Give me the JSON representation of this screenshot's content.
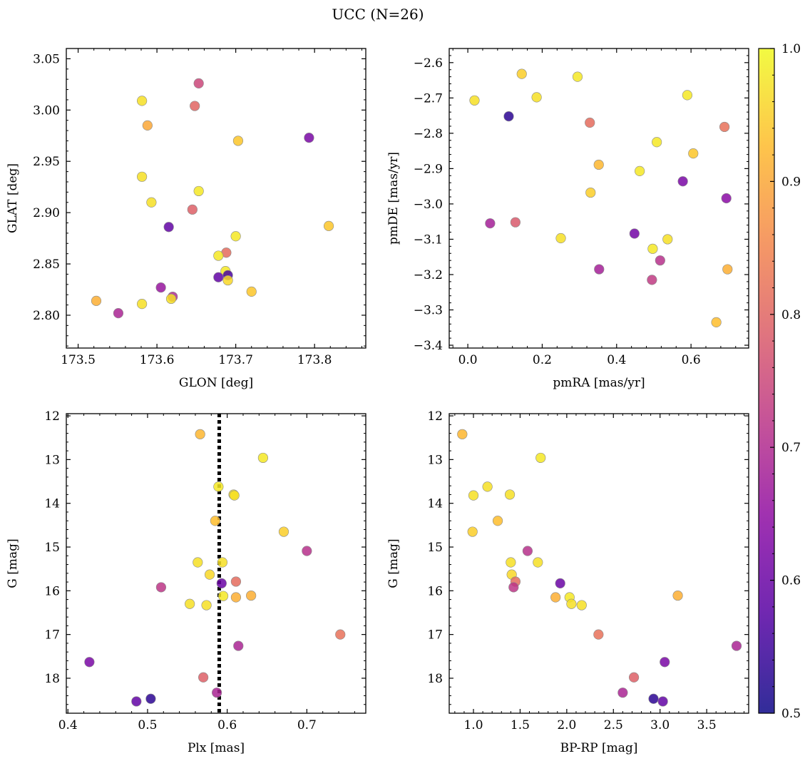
{
  "figure": {
    "title": "UCC (N=26)"
  },
  "colorbar": {
    "min": 0.5,
    "max": 1.0,
    "ticks": [
      0.5,
      0.6,
      0.7,
      0.8,
      0.9,
      1.0
    ],
    "tick_labels": [
      "0.5",
      "0.6",
      "0.7",
      "0.8",
      "0.9",
      "1.0"
    ],
    "colormap": "plasma"
  },
  "chart_data": [
    {
      "id": "glon-glat",
      "type": "scatter",
      "xlabel": "GLON [deg]",
      "ylabel": "GLAT [deg]",
      "xlim": [
        173.485,
        173.865
      ],
      "ylim": [
        2.768,
        3.06
      ],
      "xticks": [
        173.5,
        173.6,
        173.7,
        173.8
      ],
      "xtick_labels": [
        "173.5",
        "173.6",
        "173.7",
        "173.8"
      ],
      "yticks": [
        2.8,
        2.85,
        2.9,
        2.95,
        3.0,
        3.05
      ],
      "ytick_labels": [
        "2.80",
        "2.85",
        "2.90",
        "2.95",
        "3.00",
        "3.05"
      ],
      "invert_y": false,
      "x": [
        173.653,
        173.581,
        173.648,
        173.588,
        173.793,
        173.703,
        173.581,
        173.653,
        173.593,
        173.645,
        173.615,
        173.818,
        173.7,
        173.688,
        173.678,
        173.687,
        173.69,
        173.678,
        173.69,
        173.72,
        173.605,
        173.62,
        173.618,
        173.523,
        173.581,
        173.551
      ],
      "y": [
        3.026,
        3.009,
        3.004,
        2.985,
        2.973,
        2.97,
        2.935,
        2.921,
        2.91,
        2.903,
        2.886,
        2.887,
        2.877,
        2.861,
        2.858,
        2.843,
        2.839,
        2.837,
        2.834,
        2.823,
        2.827,
        2.818,
        2.816,
        2.814,
        2.811,
        2.802
      ],
      "c": [
        0.75,
        0.97,
        0.8,
        0.9,
        0.62,
        0.94,
        0.97,
        0.98,
        0.97,
        0.79,
        0.59,
        0.94,
        0.98,
        0.81,
        0.98,
        0.98,
        0.56,
        0.59,
        0.96,
        0.94,
        0.66,
        0.7,
        0.97,
        0.91,
        0.97,
        0.69
      ]
    },
    {
      "id": "pmra-pmde",
      "type": "scatter",
      "xlabel": "pmRA [mas/yr]",
      "ylabel": "pmDE [mas/yr]",
      "xlim": [
        -0.05,
        0.755
      ],
      "ylim": [
        -3.408,
        -2.56
      ],
      "xticks": [
        0.0,
        0.2,
        0.4,
        0.6
      ],
      "xtick_labels": [
        "0.0",
        "0.2",
        "0.4",
        "0.6"
      ],
      "yticks": [
        -3.4,
        -3.3,
        -3.2,
        -3.1,
        -3.0,
        -2.9,
        -2.8,
        -2.7,
        -2.6
      ],
      "ytick_labels": [
        "−3.4",
        "−3.3",
        "−3.2",
        "−3.1",
        "−3.0",
        "−2.9",
        "−2.8",
        "−2.7",
        "−2.6"
      ],
      "invert_y": false,
      "x": [
        0.145,
        0.295,
        0.59,
        0.018,
        0.185,
        0.11,
        0.328,
        0.69,
        0.508,
        0.606,
        0.352,
        0.462,
        0.578,
        0.33,
        0.695,
        0.06,
        0.128,
        0.448,
        0.25,
        0.537,
        0.497,
        0.517,
        0.698,
        0.353,
        0.495,
        0.668
      ],
      "y": [
        -2.632,
        -2.64,
        -2.692,
        -2.707,
        -2.698,
        -2.752,
        -2.77,
        -2.782,
        -2.825,
        -2.857,
        -2.889,
        -2.907,
        -2.936,
        -2.968,
        -2.984,
        -3.055,
        -3.052,
        -3.084,
        -3.097,
        -3.1,
        -3.127,
        -3.16,
        -3.185,
        -3.185,
        -3.215,
        -3.335
      ],
      "c": [
        0.95,
        0.98,
        0.98,
        0.97,
        0.97,
        0.53,
        0.81,
        0.82,
        0.98,
        0.94,
        0.92,
        0.98,
        0.62,
        0.95,
        0.64,
        0.68,
        0.78,
        0.61,
        0.97,
        0.97,
        0.98,
        0.71,
        0.91,
        0.68,
        0.73,
        0.93
      ]
    },
    {
      "id": "plx-g",
      "type": "scatter",
      "xlabel": "Plx [mas]",
      "ylabel": "G [mag]",
      "xlim": [
        0.398,
        0.774
      ],
      "ylim": [
        11.95,
        18.8
      ],
      "xticks": [
        0.4,
        0.5,
        0.6,
        0.7
      ],
      "xtick_labels": [
        "0.4",
        "0.5",
        "0.6",
        "0.7"
      ],
      "yticks": [
        12,
        13,
        14,
        15,
        16,
        17,
        18
      ],
      "ytick_labels": [
        "12",
        "13",
        "14",
        "15",
        "16",
        "17",
        "18"
      ],
      "invert_y": true,
      "vline": 0.59,
      "x": [
        0.566,
        0.645,
        0.589,
        0.608,
        0.585,
        0.671,
        0.7,
        0.563,
        0.594,
        0.578,
        0.611,
        0.593,
        0.517,
        0.595,
        0.611,
        0.63,
        0.553,
        0.574,
        0.742,
        0.614,
        0.427,
        0.57,
        0.587,
        0.504,
        0.486,
        0.609
      ],
      "y": [
        12.42,
        12.96,
        13.62,
        13.8,
        14.4,
        14.65,
        15.09,
        15.35,
        15.35,
        15.63,
        15.79,
        15.83,
        15.92,
        16.12,
        16.15,
        16.11,
        16.3,
        16.33,
        17.0,
        17.26,
        17.63,
        17.98,
        18.33,
        18.47,
        18.53,
        13.82
      ],
      "c": [
        0.92,
        0.98,
        0.98,
        0.97,
        0.93,
        0.95,
        0.71,
        0.97,
        0.97,
        0.96,
        0.81,
        0.6,
        0.72,
        0.98,
        0.91,
        0.91,
        0.97,
        0.97,
        0.82,
        0.69,
        0.62,
        0.79,
        0.69,
        0.53,
        0.59,
        0.97
      ]
    },
    {
      "id": "bprp-g",
      "type": "scatter",
      "xlabel": "BP-RP [mag]",
      "ylabel": "G [mag]",
      "xlim": [
        0.74,
        3.95
      ],
      "ylim": [
        11.95,
        18.8
      ],
      "xticks": [
        1.0,
        1.5,
        2.0,
        2.5,
        3.0,
        3.5
      ],
      "xtick_labels": [
        "1.0",
        "1.5",
        "2.0",
        "2.5",
        "3.0",
        "3.5"
      ],
      "yticks": [
        12,
        13,
        14,
        15,
        16,
        17,
        18
      ],
      "ytick_labels": [
        "12",
        "13",
        "14",
        "15",
        "16",
        "17",
        "18"
      ],
      "invert_y": true,
      "x": [
        0.88,
        1.72,
        1.15,
        1.0,
        1.39,
        1.26,
        0.99,
        1.58,
        1.4,
        1.69,
        1.41,
        1.45,
        1.93,
        1.43,
        2.03,
        1.88,
        3.19,
        2.05,
        2.16,
        2.34,
        3.82,
        3.05,
        2.72,
        2.6,
        2.93,
        3.03
      ],
      "y": [
        12.42,
        12.96,
        13.62,
        13.82,
        13.8,
        14.4,
        14.65,
        15.09,
        15.35,
        15.35,
        15.63,
        15.79,
        15.83,
        15.92,
        16.15,
        16.15,
        16.11,
        16.3,
        16.33,
        17.0,
        17.26,
        17.63,
        17.98,
        18.33,
        18.47,
        18.53
      ],
      "c": [
        0.92,
        0.98,
        0.97,
        0.97,
        0.97,
        0.93,
        0.95,
        0.71,
        0.97,
        0.97,
        0.96,
        0.81,
        0.6,
        0.72,
        0.98,
        0.91,
        0.91,
        0.97,
        0.97,
        0.82,
        0.69,
        0.62,
        0.79,
        0.69,
        0.53,
        0.59
      ]
    }
  ]
}
